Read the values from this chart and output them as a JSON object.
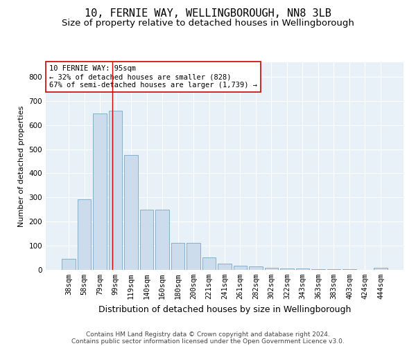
{
  "title_line1": "10, FERNIE WAY, WELLINGBOROUGH, NN8 3LB",
  "title_line2": "Size of property relative to detached houses in Wellingborough",
  "xlabel": "Distribution of detached houses by size in Wellingborough",
  "ylabel": "Number of detached properties",
  "categories": [
    "38sqm",
    "58sqm",
    "79sqm",
    "99sqm",
    "119sqm",
    "140sqm",
    "160sqm",
    "180sqm",
    "200sqm",
    "221sqm",
    "241sqm",
    "261sqm",
    "282sqm",
    "302sqm",
    "322sqm",
    "343sqm",
    "363sqm",
    "383sqm",
    "403sqm",
    "424sqm",
    "444sqm"
  ],
  "values": [
    47,
    293,
    649,
    660,
    477,
    248,
    248,
    113,
    113,
    52,
    27,
    18,
    14,
    8,
    6,
    5,
    4,
    3,
    2,
    1,
    8
  ],
  "bar_color": "#ccdcec",
  "bar_edge_color": "#6699bb",
  "vline_x": 2.8,
  "vline_color": "#cc0000",
  "annotation_text": "10 FERNIE WAY: 95sqm\n← 32% of detached houses are smaller (828)\n67% of semi-detached houses are larger (1,739) →",
  "annotation_box_color": "#ffffff",
  "annotation_box_edge": "#cc0000",
  "ylim": [
    0,
    860
  ],
  "yticks": [
    0,
    100,
    200,
    300,
    400,
    500,
    600,
    700,
    800
  ],
  "footer_line1": "Contains HM Land Registry data © Crown copyright and database right 2024.",
  "footer_line2": "Contains public sector information licensed under the Open Government Licence v3.0.",
  "bg_color": "#e8f0f8",
  "plot_bg_color": "#e8f0f8",
  "title1_fontsize": 11,
  "title2_fontsize": 9.5,
  "xlabel_fontsize": 9,
  "ylabel_fontsize": 8,
  "tick_fontsize": 7.5,
  "footer_fontsize": 6.5,
  "annotation_fontsize": 7.5
}
